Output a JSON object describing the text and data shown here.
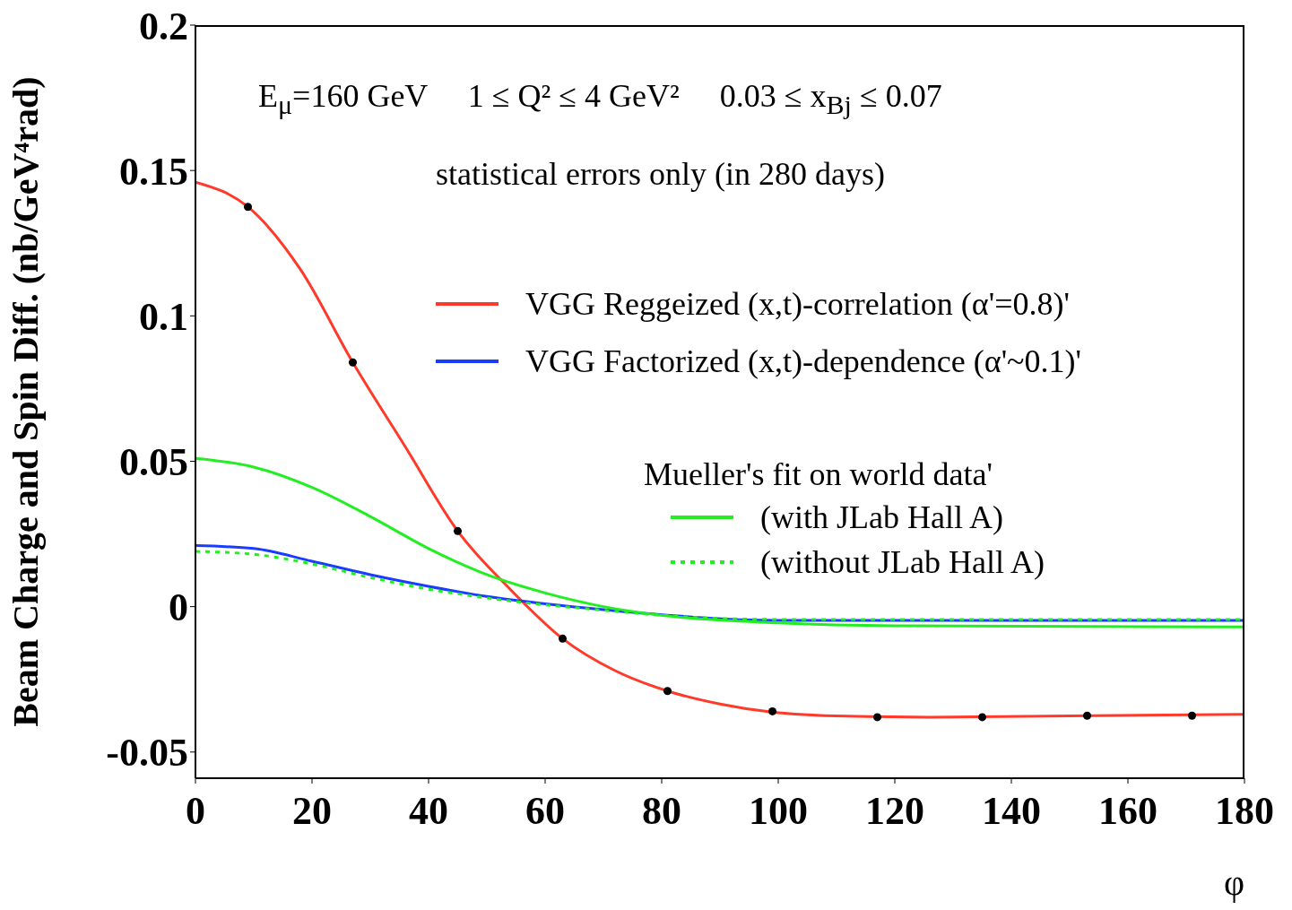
{
  "chart_data": {
    "type": "line",
    "xlabel": "φ",
    "ylabel": "Beam Charge and Spin Diff. (nb/GeV⁴rad)",
    "xlim": [
      0,
      180
    ],
    "xticks": [
      0,
      20,
      40,
      60,
      80,
      100,
      120,
      140,
      160,
      180
    ],
    "ylim": [
      -0.059,
      0.2
    ],
    "yticks": [
      -0.05,
      0,
      0.05,
      0.1,
      0.15,
      0.2
    ],
    "legend": "right",
    "annotations": [
      "E$_{μ}$=160 GeV     1 ≤ Q² ≤ 4 GeV²     0.03 ≤ x$_{Bj}$ ≤ 0.07",
      "statistical errors only (in 280 days)",
      "Mueller's fit on world data'"
    ],
    "series": [
      {
        "name": "VGG Reggeized (x,t)-correlation (α'=0.8)'",
        "color": "#ff3a2a",
        "marker": "none",
        "line_style": "solid",
        "x": [
          0,
          9,
          18,
          27,
          36,
          45,
          54,
          63,
          72,
          81,
          90,
          108,
          126,
          180
        ],
        "values": [
          0.146,
          0.1375,
          0.116,
          0.084,
          0.055,
          0.026,
          0.006,
          -0.011,
          -0.022,
          -0.029,
          -0.0335,
          -0.0375,
          -0.038,
          -0.037
        ]
      },
      {
        "name": "VGG Factorized (x,t)-dependence (α'~0.1)'",
        "color": "#1a3cff",
        "marker": "none",
        "line_style": "solid",
        "x": [
          0,
          10,
          20,
          30,
          40,
          50,
          60,
          70,
          100,
          180
        ],
        "values": [
          0.021,
          0.02,
          0.0156,
          0.011,
          0.007,
          0.0035,
          0.001,
          -0.001,
          -0.0047,
          -0.0047
        ]
      },
      {
        "name": "(with JLab Hall A)",
        "color": "#22ee22",
        "marker": "none",
        "line_style": "solid",
        "x": [
          0,
          10,
          20,
          30,
          40,
          50,
          60,
          70,
          80,
          100,
          120,
          180
        ],
        "values": [
          0.051,
          0.048,
          0.041,
          0.031,
          0.02,
          0.011,
          0.0047,
          0,
          -0.003,
          -0.0056,
          -0.0066,
          -0.007
        ]
      },
      {
        "name": "(without JLab Hall A)",
        "color": "#22ee22",
        "marker": "none",
        "line_style": "dotted",
        "x": [
          0,
          10,
          20,
          30,
          40,
          50,
          60,
          70,
          80,
          100,
          180
        ],
        "values": [
          0.019,
          0.018,
          0.0147,
          0.01,
          0.006,
          0.003,
          0.0006,
          -0.0012,
          -0.003,
          -0.0044,
          -0.0044
        ]
      },
      {
        "type": "scatter",
        "color": "#000000",
        "marker": "circle",
        "x": [
          9,
          27,
          45,
          63,
          81,
          99,
          117,
          135,
          153,
          171
        ],
        "values": [
          0.1375,
          0.084,
          0.026,
          -0.011,
          -0.029,
          -0.036,
          -0.038,
          -0.038,
          -0.0375,
          -0.0375
        ]
      }
    ]
  }
}
